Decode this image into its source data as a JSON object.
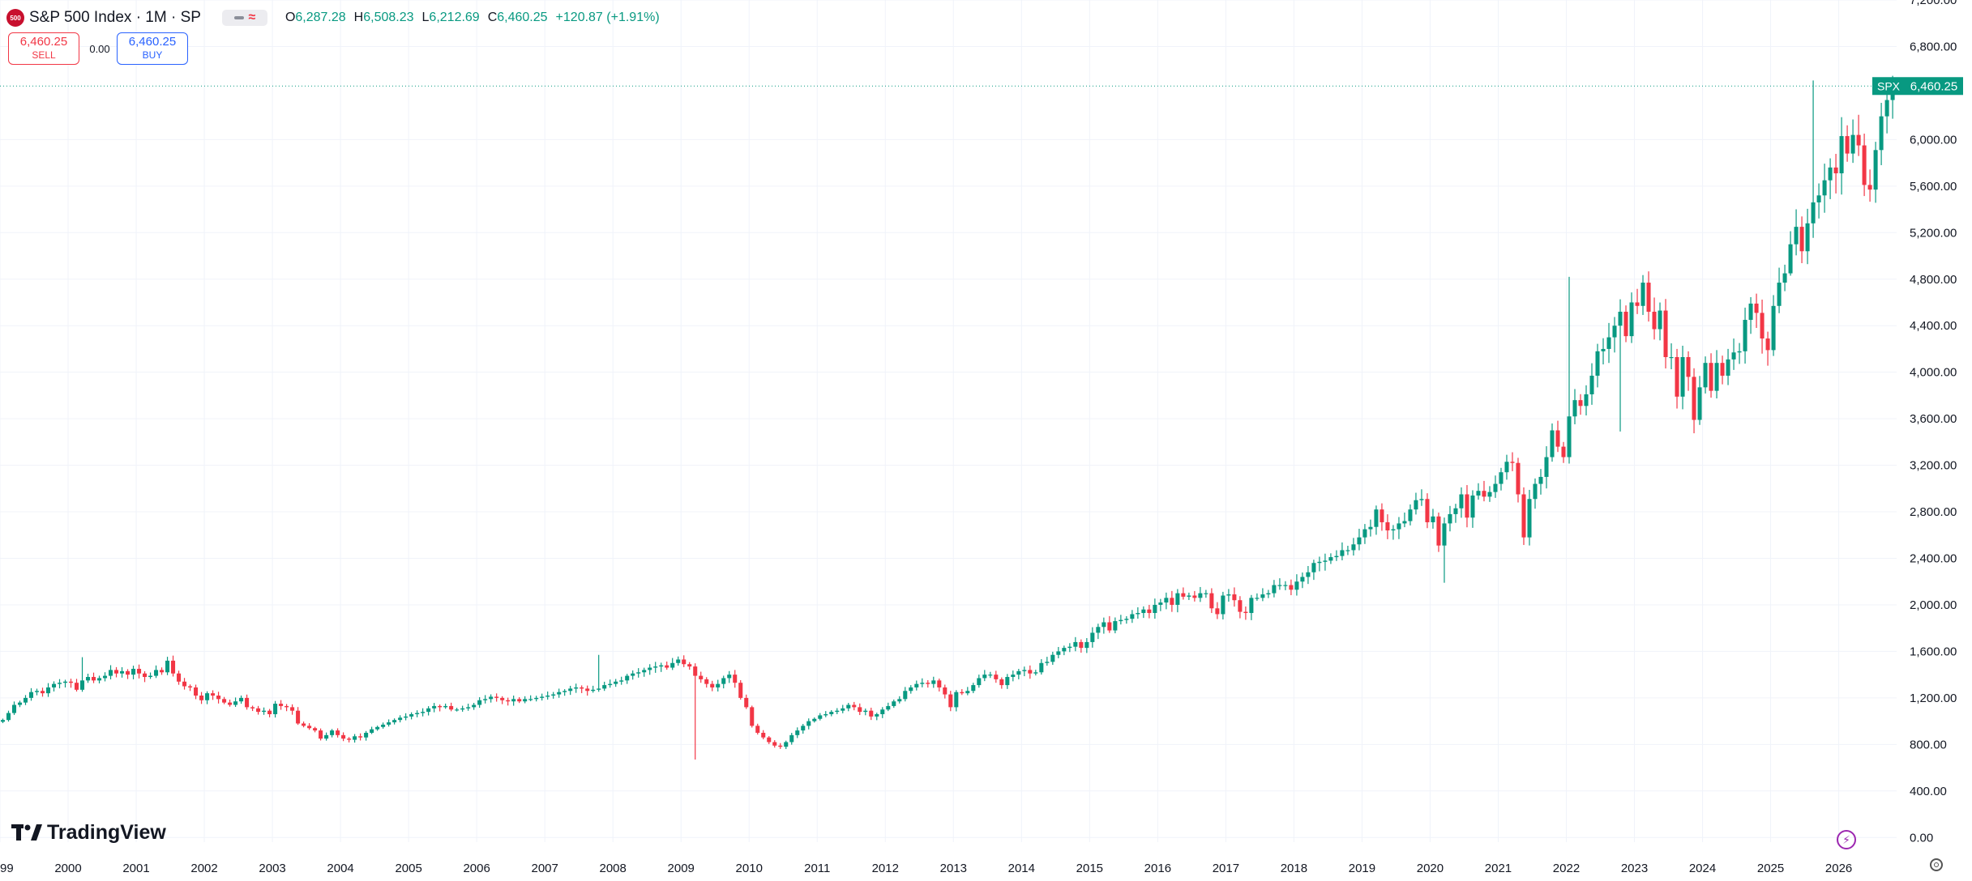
{
  "header": {
    "logo_text": "500",
    "symbol_title": "S&P 500 Index · 1M · SP",
    "ohlc": {
      "o_label": "O",
      "o_value": "6,287.28",
      "h_label": "H",
      "h_value": "6,508.23",
      "l_label": "L",
      "l_value": "6,212.69",
      "c_label": "C",
      "c_value": "6,460.25",
      "change": "+120.87 (+1.91%)"
    }
  },
  "trade": {
    "sell_price": "6,460.25",
    "sell_label": "SELL",
    "spread": "0.00",
    "buy_price": "6,460.25",
    "buy_label": "BUY"
  },
  "brand": {
    "name": "TradingView"
  },
  "colors": {
    "up": "#089981",
    "down": "#f23645",
    "grid": "#f0f3fa",
    "axis_text": "#131722"
  },
  "chart_data": {
    "type": "candlestick",
    "interval": "1M",
    "series_name": "SPX",
    "last_price_label": "6,460.25",
    "last_price": 6460.25,
    "ylim": [
      -40,
      7200
    ],
    "y_ticks": [
      0,
      400,
      800,
      1200,
      1600,
      2000,
      2400,
      2800,
      3200,
      3600,
      4000,
      4400,
      4800,
      5200,
      5600,
      6000,
      6800,
      7200
    ],
    "y_tick_labels": [
      "0.00",
      "400.00",
      "800.00",
      "1,200.00",
      "1,600.00",
      "2,000.00",
      "2,400.00",
      "2,800.00",
      "3,200.00",
      "3,600.00",
      "4,000.00",
      "4,400.00",
      "4,800.00",
      "5,200.00",
      "5,600.00",
      "6,000.00",
      "6,800.00",
      "7,200.00"
    ],
    "x_range": [
      1999.0,
      2026.85
    ],
    "x_ticks": [
      1999,
      2000,
      2001,
      2002,
      2003,
      2004,
      2005,
      2006,
      2007,
      2008,
      2009,
      2010,
      2011,
      2012,
      2013,
      2014,
      2015,
      2016,
      2017,
      2018,
      2019,
      2020,
      2021,
      2022,
      2023,
      2024,
      2025,
      2026
    ],
    "x_tick_labels": [
      "1999",
      "2000",
      "2001",
      "2002",
      "2003",
      "2004",
      "2005",
      "2006",
      "2007",
      "2008",
      "2009",
      "2010",
      "2011",
      "2012",
      "2013",
      "2014",
      "2015",
      "2016",
      "2017",
      "2018",
      "2019",
      "2020",
      "2021",
      "2022",
      "2023",
      "2024",
      "2025",
      "2026"
    ],
    "grid": true,
    "start": "1999-01",
    "closes": [
      1010,
      1070,
      1140,
      1160,
      1200,
      1250,
      1260,
      1240,
      1290,
      1320,
      1330,
      1340,
      1330,
      1270,
      1350,
      1380,
      1350,
      1370,
      1390,
      1440,
      1410,
      1430,
      1400,
      1450,
      1410,
      1380,
      1390,
      1440,
      1420,
      1520,
      1410,
      1340,
      1300,
      1290,
      1220,
      1180,
      1240,
      1220,
      1190,
      1160,
      1140,
      1170,
      1200,
      1120,
      1110,
      1080,
      1090,
      1060,
      1150,
      1130,
      1120,
      1090,
      980,
      960,
      940,
      920,
      850,
      880,
      920,
      880,
      850,
      840,
      870,
      860,
      900,
      930,
      950,
      970,
      990,
      1010,
      1030,
      1040,
      1060,
      1070,
      1080,
      1110,
      1130,
      1120,
      1130,
      1100,
      1100,
      1110,
      1120,
      1140,
      1180,
      1190,
      1210,
      1200,
      1180,
      1170,
      1190,
      1170,
      1190,
      1190,
      1200,
      1210,
      1220,
      1230,
      1250,
      1260,
      1280,
      1290,
      1280,
      1260,
      1270,
      1280,
      1310,
      1320,
      1340,
      1350,
      1390,
      1410,
      1420,
      1440,
      1460,
      1470,
      1480,
      1460,
      1500,
      1530,
      1490,
      1470,
      1390,
      1360,
      1320,
      1290,
      1320,
      1370,
      1400,
      1330,
      1200,
      1120,
      960,
      900,
      860,
      820,
      790,
      780,
      820,
      880,
      920,
      960,
      1000,
      1020,
      1050,
      1060,
      1080,
      1090,
      1110,
      1140,
      1120,
      1080,
      1090,
      1040,
      1060,
      1100,
      1130,
      1170,
      1190,
      1260,
      1290,
      1320,
      1330,
      1320,
      1350,
      1290,
      1230,
      1120,
      1250,
      1240,
      1260,
      1310,
      1370,
      1400,
      1400,
      1360,
      1310,
      1380,
      1400,
      1430,
      1440,
      1410,
      1420,
      1500,
      1510,
      1570,
      1600,
      1630,
      1640,
      1680,
      1630,
      1680,
      1760,
      1810,
      1850,
      1780,
      1860,
      1870,
      1880,
      1920,
      1930,
      1960,
      1930,
      2000,
      2020,
      2060,
      2000,
      2100,
      2070,
      2080,
      2060,
      2100,
      2100,
      1970,
      1920,
      2080,
      2090,
      2040,
      1940,
      1930,
      2060,
      2060,
      2090,
      2100,
      2170,
      2170,
      2170,
      2130,
      2200,
      2240,
      2280,
      2360,
      2370,
      2380,
      2410,
      2420,
      2470,
      2470,
      2520,
      2580,
      2650,
      2670,
      2820,
      2710,
      2640,
      2650,
      2700,
      2720,
      2820,
      2900,
      2910,
      2710,
      2760,
      2510,
      2700,
      2780,
      2830,
      2950,
      2750,
      2940,
      2980,
      2930,
      2970,
      3040,
      3140,
      3230,
      3220,
      2950,
      2580,
      2910,
      3040,
      3100,
      3270,
      3500,
      3360,
      3270,
      3620,
      3760,
      3710,
      3810,
      3970,
      4180,
      4200,
      4300,
      4400,
      4520,
      4310,
      4600,
      4570,
      4770,
      4520,
      4370,
      4530,
      4130,
      4130,
      3790,
      4130,
      3960,
      3590,
      3870,
      4080,
      3840,
      4080,
      3970,
      4110,
      4170,
      4180,
      4450,
      4590,
      4510,
      4290,
      4190,
      4570,
      4770,
      4850,
      5100,
      5250,
      5040,
      5280,
      5460,
      5520,
      5650,
      5760,
      5710,
      6030,
      5880,
      6040,
      5950,
      5610,
      5570,
      5910,
      6200,
      6340,
      6460
    ],
    "notable_lows": {
      "2009-03": 670,
      "2020-03": 2190,
      "2022-10": 3490,
      "2025-04": 4830
    },
    "notable_highs": {
      "2000-03": 1550,
      "2007-10": 1570,
      "2022-01": 4820,
      "2025-08": 6508.23
    }
  }
}
